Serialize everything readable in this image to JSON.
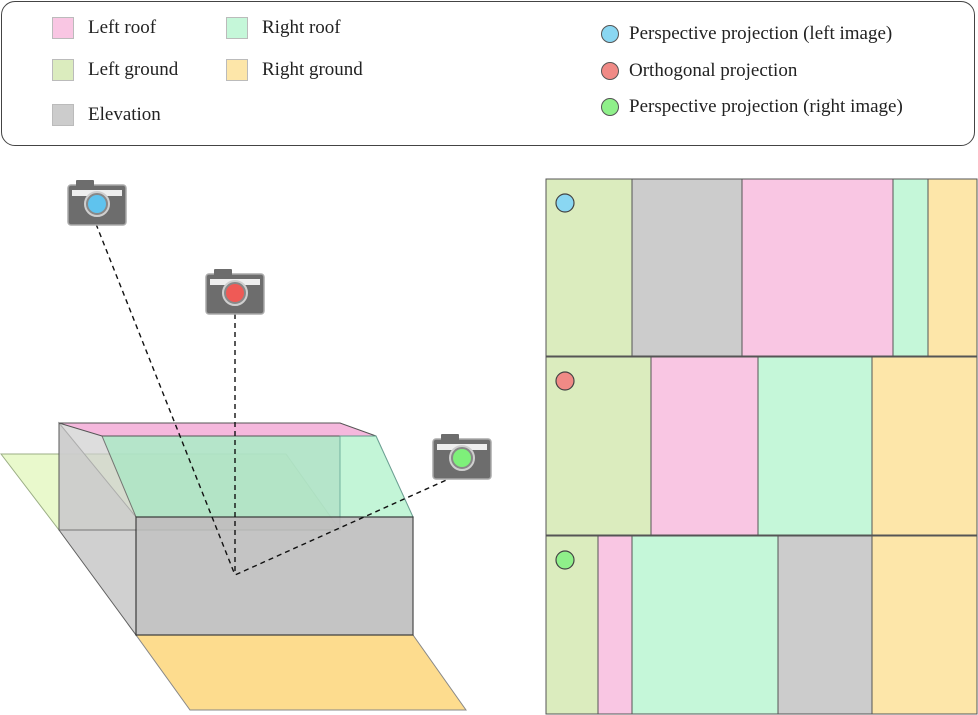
{
  "legend": {
    "regions": [
      {
        "label": "Left roof",
        "color": "#f9c6e3"
      },
      {
        "label": "Right roof",
        "color": "#c5f7d9"
      },
      {
        "label": "Left ground",
        "color": "#dbecbe"
      },
      {
        "label": "Right ground",
        "color": "#fde6a9"
      },
      {
        "label": "Elevation",
        "color": "#cccccc"
      }
    ],
    "projections": [
      {
        "label": "Perspective projection (left image)",
        "color": "#8ad7f2"
      },
      {
        "label": "Orthogonal projection",
        "color": "#f08a86"
      },
      {
        "label": "Perspective projection (right image)",
        "color": "#8ff08a"
      }
    ]
  },
  "cameras": [
    {
      "name": "left",
      "color": "#5fc3ee"
    },
    {
      "name": "ortho",
      "color": "#ef5a56"
    },
    {
      "name": "right",
      "color": "#7ef07a"
    }
  ],
  "strips": [
    {
      "name": "left-image",
      "marker_color": "#8ad7f2",
      "segments": [
        {
          "region": "Left ground",
          "color": "#dbecbe"
        },
        {
          "region": "Elevation",
          "color": "#cccccc"
        },
        {
          "region": "Left roof",
          "color": "#f9c6e3"
        },
        {
          "region": "Right roof",
          "color": "#c5f7d9"
        },
        {
          "region": "Right ground",
          "color": "#fde6a9"
        }
      ]
    },
    {
      "name": "orthogonal",
      "marker_color": "#f08a86",
      "segments": [
        {
          "region": "Left ground",
          "color": "#dbecbe"
        },
        {
          "region": "Left roof",
          "color": "#f9c6e3"
        },
        {
          "region": "Right roof",
          "color": "#c5f7d9"
        },
        {
          "region": "Right ground",
          "color": "#fde6a9"
        }
      ]
    },
    {
      "name": "right-image",
      "marker_color": "#8ff08a",
      "segments": [
        {
          "region": "Left ground",
          "color": "#dbecbe"
        },
        {
          "region": "Left roof",
          "color": "#f9c6e3"
        },
        {
          "region": "Right roof",
          "color": "#c5f7d9"
        },
        {
          "region": "Elevation",
          "color": "#cccccc"
        },
        {
          "region": "Right ground",
          "color": "#fde6a9"
        }
      ]
    }
  ]
}
